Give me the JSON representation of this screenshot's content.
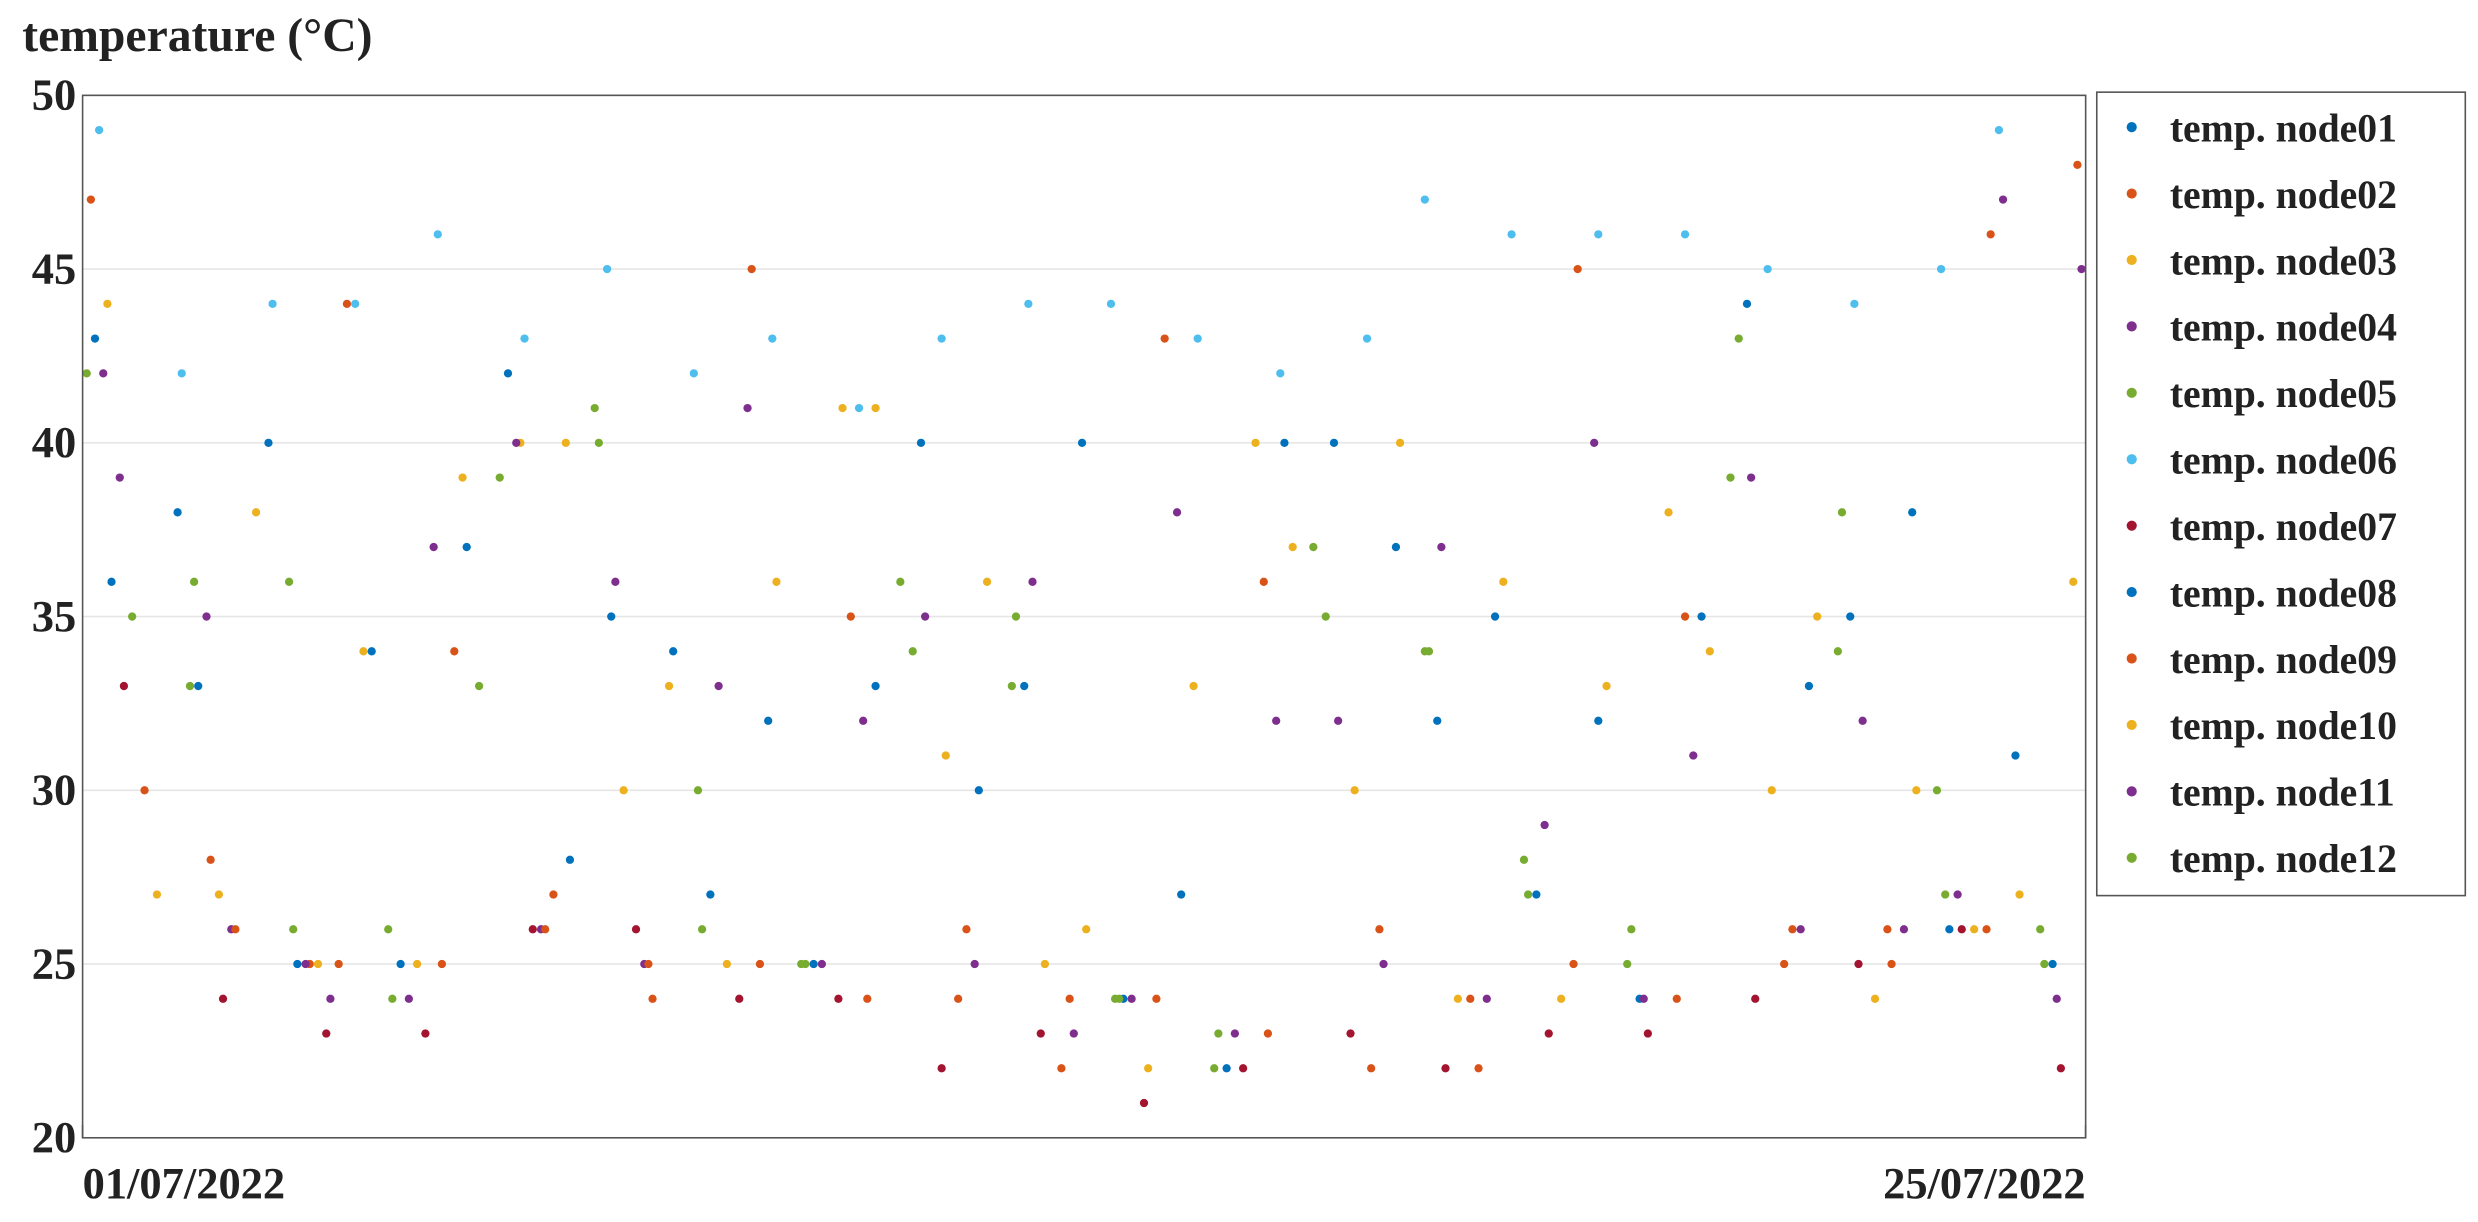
{
  "chart_data": {
    "type": "scatter",
    "title": "temperature (°C)",
    "xlim": [
      1,
      25.25
    ],
    "xticks": [
      {
        "value": 1,
        "label": "01/07/2022"
      },
      {
        "value": 25.25,
        "label": "25/07/2022"
      }
    ],
    "ylim": [
      20,
      50
    ],
    "yticks": [
      20,
      25,
      30,
      35,
      40,
      45,
      50
    ],
    "grid": true,
    "legend": "outside-right",
    "series": [
      {
        "name": "temp. node01",
        "color": "#0072BD",
        "x": [
          1.15,
          2.4,
          3.6,
          4.85,
          6.15,
          7.4,
          8.6,
          9.85,
          11.15,
          12.4,
          13.6,
          14.85,
          16.15,
          17.4,
          18.6,
          19.85,
          21.15,
          22.4,
          23.6,
          24.85
        ],
        "values": [
          43,
          33,
          25,
          25,
          42,
          35,
          27,
          25,
          40,
          33,
          24,
          22,
          40,
          32,
          27,
          24,
          44,
          35,
          26,
          25
        ]
      },
      {
        "name": "temp. node02",
        "color": "#D95319",
        "x": [
          1.1,
          2.55,
          3.75,
          4.2,
          5.5,
          6.7,
          7.9,
          9.1,
          10.3,
          11.7,
          12.95,
          14.1,
          15.3,
          16.7,
          17.9,
          19.1,
          20.4,
          21.7,
          22.9,
          24.1
        ],
        "values": [
          47,
          28,
          25,
          44,
          34,
          27,
          24,
          45,
          35,
          26,
          24,
          43,
          36,
          26,
          22,
          45,
          35,
          26,
          25,
          46
        ]
      },
      {
        "name": "temp. node03",
        "color": "#EDB120",
        "x": [
          1.3,
          2.65,
          3.85,
          5.05,
          6.3,
          7.55,
          8.8,
          10.2,
          11.45,
          12.65,
          13.9,
          15.2,
          16.4,
          17.65,
          18.9,
          20.2,
          21.45,
          22.7,
          23.9,
          25.1
        ],
        "values": [
          44,
          27,
          25,
          25,
          40,
          30,
          25,
          41,
          31,
          25,
          22,
          40,
          30,
          24,
          24,
          38,
          30,
          24,
          26,
          36
        ]
      },
      {
        "name": "temp. node04",
        "color": "#7E2F8E",
        "x": [
          1.45,
          2.8,
          4.0,
          5.25,
          6.55,
          7.8,
          9.05,
          10.45,
          11.8,
          13.0,
          14.25,
          15.45,
          16.75,
          18.0,
          19.3,
          20.5,
          21.8,
          23.05,
          24.25,
          25.2
        ],
        "values": [
          39,
          26,
          24,
          37,
          26,
          25,
          41,
          32,
          25,
          23,
          38,
          32,
          25,
          24,
          40,
          31,
          26,
          26,
          47,
          45
        ]
      },
      {
        "name": "temp. node05",
        "color": "#77AC30",
        "x": [
          1.6,
          2.3,
          3.5,
          4.7,
          5.8,
          7.25,
          8.45,
          9.7,
          10.9,
          12.25,
          13.5,
          14.7,
          15.9,
          17.25,
          18.45,
          19.7,
          20.95,
          22.25,
          23.45,
          24.7
        ],
        "values": [
          35,
          33,
          36,
          26,
          33,
          40,
          30,
          25,
          36,
          33,
          24,
          22,
          37,
          34,
          28,
          25,
          39,
          34,
          30,
          26
        ]
      },
      {
        "name": "temp. node06",
        "color": "#4DBEEE",
        "x": [
          1.2,
          2.2,
          3.3,
          4.3,
          5.3,
          6.35,
          7.35,
          8.4,
          9.35,
          10.4,
          11.4,
          12.45,
          13.45,
          14.5,
          15.5,
          16.55,
          17.25,
          18.3,
          19.35,
          20.4,
          21.4,
          22.45,
          23.5,
          24.2
        ],
        "values": [
          49,
          42,
          44,
          44,
          46,
          43,
          45,
          42,
          43,
          41,
          43,
          44,
          44,
          43,
          42,
          43,
          47,
          46,
          46,
          46,
          45,
          44,
          45,
          49
        ]
      },
      {
        "name": "temp. node07",
        "color": "#A2142F",
        "x": [
          1.5,
          2.7,
          3.95,
          5.15,
          6.45,
          7.7,
          8.95,
          10.15,
          11.4,
          12.6,
          13.85,
          15.05,
          16.35,
          17.5,
          18.75,
          19.95,
          21.25,
          22.5,
          23.75,
          24.95
        ],
        "values": [
          33,
          24,
          23,
          23,
          26,
          26,
          24,
          24,
          22,
          23,
          21,
          22,
          23,
          22,
          23,
          23,
          24,
          25,
          26,
          22
        ]
      },
      {
        "name": "temp. node08",
        "color": "#0072BD",
        "x": [
          1.35,
          2.15,
          3.25,
          4.5,
          5.65,
          6.9,
          8.15,
          9.3,
          10.6,
          11.85,
          13.1,
          14.3,
          15.55,
          16.9,
          18.1,
          19.35,
          20.6,
          21.9,
          23.15,
          24.4
        ],
        "values": [
          36,
          38,
          40,
          34,
          37,
          28,
          34,
          32,
          33,
          30,
          40,
          27,
          40,
          37,
          35,
          32,
          35,
          33,
          38,
          31
        ]
      },
      {
        "name": "temp. node09",
        "color": "#D95319",
        "x": [
          1.75,
          2.85,
          4.1,
          5.35,
          6.6,
          7.85,
          9.2,
          10.5,
          11.6,
          12.85,
          14.0,
          15.35,
          16.6,
          17.8,
          19.05,
          20.3,
          21.6,
          22.85,
          24.05,
          25.15
        ],
        "values": [
          30,
          26,
          25,
          25,
          26,
          25,
          25,
          24,
          24,
          22,
          24,
          23,
          22,
          24,
          25,
          24,
          25,
          26,
          26,
          48
        ]
      },
      {
        "name": "temp. node10",
        "color": "#EDB120",
        "x": [
          1.9,
          3.1,
          4.4,
          5.6,
          6.85,
          8.1,
          9.4,
          10.6,
          11.95,
          13.15,
          14.45,
          15.65,
          16.95,
          18.2,
          19.45,
          20.7,
          22.0,
          23.2,
          24.45
        ],
        "values": [
          27,
          38,
          34,
          39,
          40,
          33,
          36,
          41,
          36,
          26,
          33,
          37,
          40,
          36,
          33,
          34,
          35,
          30,
          27
        ]
      },
      {
        "name": "temp. node11",
        "color": "#7E2F8E",
        "x": [
          1.25,
          2.5,
          3.7,
          4.95,
          6.25,
          7.45,
          8.7,
          9.95,
          11.2,
          12.5,
          13.7,
          14.95,
          16.2,
          17.45,
          18.7,
          19.9,
          21.2,
          22.55,
          23.7,
          24.9
        ],
        "values": [
          42,
          35,
          25,
          24,
          40,
          36,
          33,
          25,
          35,
          36,
          24,
          23,
          32,
          37,
          29,
          24,
          39,
          32,
          27,
          24
        ]
      },
      {
        "name": "temp. node12",
        "color": "#77AC30",
        "x": [
          1.05,
          2.35,
          3.55,
          4.75,
          6.05,
          7.2,
          8.5,
          9.75,
          11.05,
          12.3,
          13.55,
          14.75,
          16.05,
          17.3,
          18.5,
          19.75,
          21.05,
          22.3,
          23.55,
          24.75
        ],
        "values": [
          42,
          36,
          26,
          24,
          39,
          41,
          26,
          25,
          34,
          35,
          24,
          23,
          35,
          34,
          27,
          26,
          43,
          38,
          27,
          25
        ]
      }
    ]
  }
}
